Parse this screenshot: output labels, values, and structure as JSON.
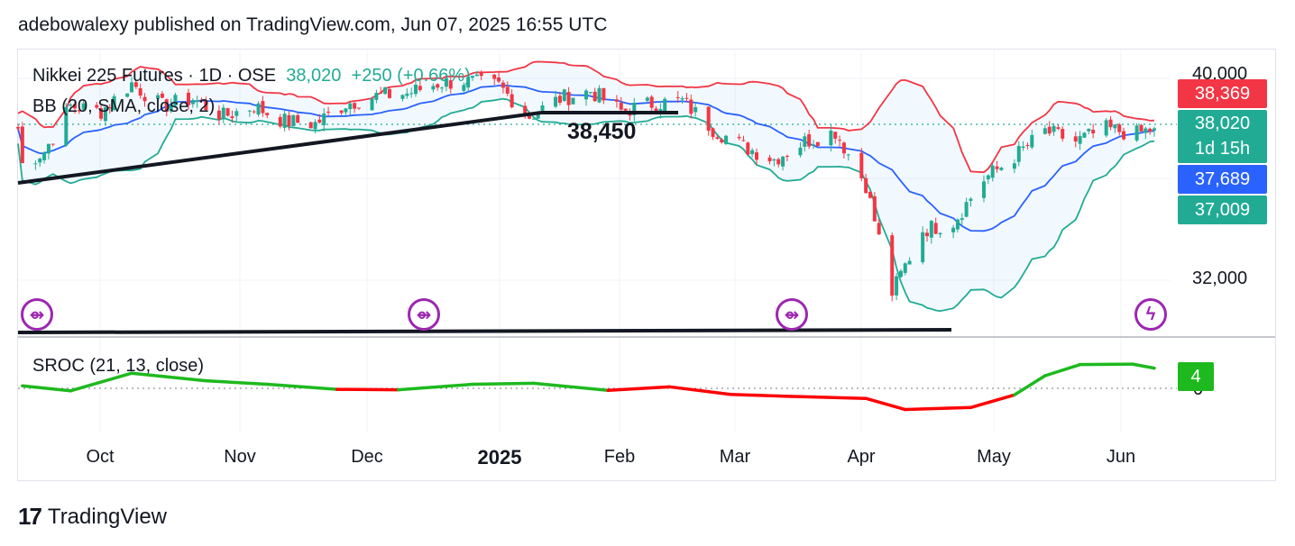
{
  "header": {
    "published_text": "adebowalexy published on TradingView.com, Jun 07, 2025 16:55 UTC"
  },
  "legend": {
    "symbol": "Nikkei 225 Futures · 1D · OSE",
    "last_value": "38,020",
    "change": "+250 (+0.66%)",
    "bb_label": "BB (20, SMA, close, 2)",
    "sroc_label": "SROC (21, 13, close)"
  },
  "price_axis": {
    "ticks": [
      "40,000",
      "32,000"
    ],
    "tags": [
      {
        "label": "38,369",
        "color": "#f23645"
      },
      {
        "label": "38,020",
        "sub": "1d 15h",
        "color": "#22ab94"
      },
      {
        "label": "37,689",
        "color": "#2962ff"
      },
      {
        "label": "37,009",
        "color": "#22ab94"
      }
    ],
    "sroc_tag": {
      "label": "4",
      "color": "#1eb91e"
    },
    "sroc_zero_tick": "0"
  },
  "annotation": {
    "label": "38,450"
  },
  "time_axis": {
    "months": [
      {
        "label": "Oct",
        "bold": false
      },
      {
        "label": "Nov",
        "bold": false
      },
      {
        "label": "Dec",
        "bold": false
      },
      {
        "label": "2025",
        "bold": true
      },
      {
        "label": "Feb",
        "bold": false
      },
      {
        "label": "Mar",
        "bold": false
      },
      {
        "label": "Apr",
        "bold": false
      },
      {
        "label": "May",
        "bold": false
      },
      {
        "label": "Jun",
        "bold": false
      }
    ]
  },
  "events": [
    {
      "icon": "split-arrow-icon",
      "glyph": "⇴"
    },
    {
      "icon": "split-arrow-icon",
      "glyph": "⇴"
    },
    {
      "icon": "split-arrow-icon",
      "glyph": "⇴"
    },
    {
      "icon": "lightning-icon",
      "glyph": "ϟ"
    }
  ],
  "brand": {
    "logo": "17",
    "name": "TradingView"
  },
  "colors": {
    "up": "#22ab94",
    "down": "#f23645",
    "bb_upper": "#f23645",
    "bb_basis": "#2962ff",
    "bb_lower": "#22ab94",
    "sroc_pos": "#1eb91e",
    "sroc_neg": "#ff0000",
    "trendline": "#131722"
  },
  "chart_data": [
    {
      "type": "candlestick",
      "title": "Nikkei 225 Futures · 1D · OSE",
      "x_range": [
        "2024-09-19",
        "2025-06-06"
      ],
      "y_scale": "linear",
      "ylim": [
        30000,
        41000
      ],
      "months": [
        "Oct",
        "Nov",
        "Dec",
        "2025",
        "Feb",
        "Mar",
        "Apr",
        "May",
        "Jun"
      ],
      "close_series": [
        [
          "2024-09-20",
          36600
        ],
        [
          "2024-09-25",
          37100
        ],
        [
          "2024-10-01",
          38900
        ],
        [
          "2024-10-08",
          38700
        ],
        [
          "2024-10-15",
          39800
        ],
        [
          "2024-10-22",
          38900
        ],
        [
          "2024-10-29",
          39200
        ],
        [
          "2024-11-05",
          38500
        ],
        [
          "2024-11-12",
          38900
        ],
        [
          "2024-11-19",
          38300
        ],
        [
          "2024-11-26",
          38200
        ],
        [
          "2024-12-03",
          39000
        ],
        [
          "2024-12-10",
          39300
        ],
        [
          "2024-12-17",
          39400
        ],
        [
          "2024-12-24",
          39800
        ],
        [
          "2024-12-30",
          39900
        ],
        [
          "2025-01-07",
          39700
        ],
        [
          "2025-01-14",
          38500
        ],
        [
          "2025-01-21",
          39200
        ],
        [
          "2025-01-28",
          39500
        ],
        [
          "2025-02-04",
          38700
        ],
        [
          "2025-02-11",
          39000
        ],
        [
          "2025-02-18",
          39100
        ],
        [
          "2025-02-25",
          38000
        ],
        [
          "2025-03-04",
          37300
        ],
        [
          "2025-03-11",
          36800
        ],
        [
          "2025-03-18",
          37500
        ],
        [
          "2025-03-25",
          37900
        ],
        [
          "2025-04-01",
          35800
        ],
        [
          "2025-04-07",
          31500
        ],
        [
          "2025-04-14",
          34000
        ],
        [
          "2025-04-21",
          34300
        ],
        [
          "2025-04-28",
          36000
        ],
        [
          "2025-05-05",
          36900
        ],
        [
          "2025-05-12",
          37900
        ],
        [
          "2025-05-19",
          37500
        ],
        [
          "2025-05-26",
          38000
        ],
        [
          "2025-06-02",
          37800
        ],
        [
          "2025-06-06",
          38020
        ]
      ],
      "bollinger": {
        "params": "20, SMA, close, 2",
        "upper_last": 38369,
        "basis_last": 37689,
        "lower_last": 37009
      },
      "last_price": 38020,
      "change": 250,
      "change_pct": 0.66,
      "annotation_level": 38450
    },
    {
      "type": "line",
      "title": "SROC (21, 13, close)",
      "last_value": 4,
      "zero_line": 0,
      "series": [
        [
          "2024-09-20",
          0.5
        ],
        [
          "2024-10-01",
          -0.5
        ],
        [
          "2024-10-15",
          3.0
        ],
        [
          "2024-11-01",
          1.5
        ],
        [
          "2024-11-15",
          0.8
        ],
        [
          "2024-12-01",
          -0.2
        ],
        [
          "2024-12-15",
          -0.3
        ],
        [
          "2025-01-01",
          0.8
        ],
        [
          "2025-01-15",
          1.0
        ],
        [
          "2025-02-01",
          -0.4
        ],
        [
          "2025-02-15",
          0.3
        ],
        [
          "2025-03-01",
          -1.2
        ],
        [
          "2025-03-15",
          -1.6
        ],
        [
          "2025-04-01",
          -2.0
        ],
        [
          "2025-04-10",
          -4.2
        ],
        [
          "2025-04-25",
          -3.8
        ],
        [
          "2025-05-05",
          -1.3
        ],
        [
          "2025-05-12",
          2.5
        ],
        [
          "2025-05-20",
          4.7
        ],
        [
          "2025-06-01",
          4.8
        ],
        [
          "2025-06-06",
          4.0
        ]
      ]
    }
  ]
}
